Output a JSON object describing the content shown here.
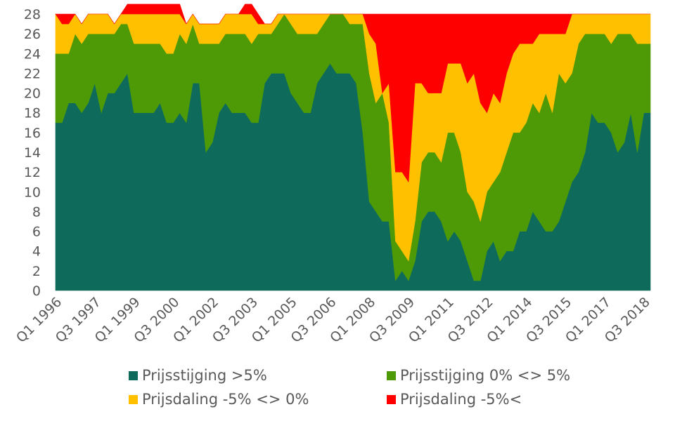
{
  "chart_data": {
    "type": "area",
    "stacked": true,
    "ylim": [
      0,
      28
    ],
    "yticks": [
      0,
      2,
      4,
      6,
      8,
      10,
      12,
      14,
      16,
      18,
      20,
      22,
      24,
      26,
      28
    ],
    "xtick_labels": [
      "Q1 1996",
      "Q3 1997",
      "Q1 1999",
      "Q3 2000",
      "Q1 2002",
      "Q3 2003",
      "Q1 2005",
      "Q3 2006",
      "Q1 2008",
      "Q3 2009",
      "Q1 2011",
      "Q3 2012",
      "Q1 2014",
      "Q3 2015",
      "Q1 2017",
      "Q3 2018"
    ],
    "x": [
      "Q1 1996",
      "Q2 1996",
      "Q3 1996",
      "Q4 1996",
      "Q1 1997",
      "Q2 1997",
      "Q3 1997",
      "Q4 1997",
      "Q1 1998",
      "Q2 1998",
      "Q3 1998",
      "Q4 1998",
      "Q1 1999",
      "Q2 1999",
      "Q3 1999",
      "Q4 1999",
      "Q1 2000",
      "Q2 2000",
      "Q3 2000",
      "Q4 2000",
      "Q1 2001",
      "Q2 2001",
      "Q3 2001",
      "Q4 2001",
      "Q1 2002",
      "Q2 2002",
      "Q3 2002",
      "Q4 2002",
      "Q1 2003",
      "Q2 2003",
      "Q3 2003",
      "Q4 2003",
      "Q1 2004",
      "Q2 2004",
      "Q3 2004",
      "Q4 2004",
      "Q1 2005",
      "Q2 2005",
      "Q3 2005",
      "Q4 2005",
      "Q1 2006",
      "Q2 2006",
      "Q3 2006",
      "Q4 2006",
      "Q1 2007",
      "Q2 2007",
      "Q3 2007",
      "Q4 2007",
      "Q1 2008",
      "Q2 2008",
      "Q3 2008",
      "Q4 2008",
      "Q1 2009",
      "Q2 2009",
      "Q3 2009",
      "Q4 2009",
      "Q1 2010",
      "Q2 2010",
      "Q3 2010",
      "Q4 2010",
      "Q1 2011",
      "Q2 2011",
      "Q3 2011",
      "Q4 2011",
      "Q1 2012",
      "Q2 2012",
      "Q3 2012",
      "Q4 2012",
      "Q1 2013",
      "Q2 2013",
      "Q3 2013",
      "Q4 2013",
      "Q1 2014",
      "Q2 2014",
      "Q3 2014",
      "Q4 2014",
      "Q1 2015",
      "Q2 2015",
      "Q3 2015",
      "Q4 2015",
      "Q1 2016",
      "Q2 2016",
      "Q3 2016",
      "Q4 2016",
      "Q1 2017",
      "Q2 2017",
      "Q3 2017",
      "Q4 2017",
      "Q1 2018",
      "Q2 2018",
      "Q3 2018",
      "Q4 2018"
    ],
    "series": [
      {
        "name": "Prijsstijging >5%",
        "color": "#0e6b5b",
        "values": [
          17,
          17,
          19,
          19,
          18,
          19,
          21,
          18,
          20,
          20,
          21,
          22,
          18,
          18,
          18,
          18,
          19,
          17,
          17,
          18,
          17,
          21,
          21,
          14,
          15,
          18,
          19,
          18,
          18,
          18,
          17,
          17,
          21,
          22,
          22,
          22,
          20,
          19,
          18,
          18,
          21,
          22,
          23,
          22,
          22,
          22,
          21,
          16,
          9,
          8,
          7,
          7,
          1,
          2,
          1,
          3,
          7,
          8,
          8,
          7,
          5,
          6,
          5,
          3,
          1,
          1,
          4,
          5,
          3,
          4,
          4,
          6,
          6,
          8,
          7,
          6,
          6,
          7,
          9,
          11,
          12,
          14,
          18,
          17,
          17,
          16,
          14,
          15,
          18,
          14,
          18,
          18
        ]
      },
      {
        "name": "Prijsstijging 0% <> 5%",
        "color": "#4e9a06",
        "values": [
          7,
          7,
          5,
          7,
          7,
          7,
          5,
          8,
          6,
          6,
          6,
          5,
          7,
          7,
          7,
          7,
          6,
          7,
          7,
          8,
          8,
          6,
          4,
          11,
          10,
          7,
          7,
          8,
          8,
          8,
          8,
          9,
          5,
          4,
          5,
          6,
          7,
          7,
          8,
          8,
          5,
          5,
          5,
          6,
          6,
          5,
          6,
          11,
          13,
          11,
          13,
          10,
          4,
          2,
          2,
          4,
          6,
          6,
          6,
          6,
          11,
          10,
          9,
          7,
          8,
          6,
          6,
          6,
          9,
          10,
          12,
          10,
          11,
          11,
          11,
          14,
          12,
          15,
          12,
          11,
          13,
          12,
          8,
          9,
          9,
          9,
          12,
          11,
          8,
          11,
          7,
          7
        ]
      },
      {
        "name": "Prijsdaling -5% <> 0%",
        "color": "#ffc000",
        "values": [
          4,
          3,
          3,
          2,
          2,
          2,
          2,
          2,
          2,
          1,
          1,
          1,
          3,
          3,
          3,
          3,
          3,
          4,
          4,
          2,
          2,
          1,
          2,
          2,
          2,
          2,
          2,
          2,
          2,
          2,
          3,
          1,
          1,
          1,
          1,
          0,
          1,
          2,
          2,
          2,
          2,
          1,
          0,
          0,
          0,
          1,
          1,
          1,
          4,
          6,
          0,
          4,
          7,
          8,
          8,
          14,
          8,
          6,
          6,
          7,
          7,
          7,
          9,
          11,
          13,
          12,
          8,
          9,
          7,
          8,
          8,
          9,
          8,
          6,
          8,
          6,
          8,
          4,
          5,
          6,
          3,
          2,
          2,
          2,
          2,
          3,
          2,
          2,
          2,
          3,
          3,
          3
        ]
      },
      {
        "name": "Prijsdaling -5%<",
        "color": "#ff0000",
        "values": [
          0,
          1,
          1,
          0,
          0,
          0,
          0,
          0,
          0,
          0,
          0,
          1,
          1,
          1,
          1,
          1,
          1,
          1,
          1,
          1,
          0,
          0,
          0,
          0,
          0,
          0,
          0,
          0,
          0,
          1,
          1,
          1,
          0,
          0,
          0,
          0,
          0,
          0,
          0,
          0,
          0,
          0,
          0,
          0,
          0,
          0,
          0,
          0,
          2,
          3,
          8,
          7,
          16,
          16,
          17,
          7,
          7,
          8,
          8,
          8,
          5,
          5,
          5,
          7,
          6,
          9,
          10,
          8,
          9,
          6,
          4,
          3,
          3,
          3,
          2,
          2,
          2,
          2,
          2,
          0,
          0,
          0,
          0,
          0,
          0,
          0,
          0,
          0,
          0,
          0,
          0,
          0
        ]
      }
    ]
  }
}
